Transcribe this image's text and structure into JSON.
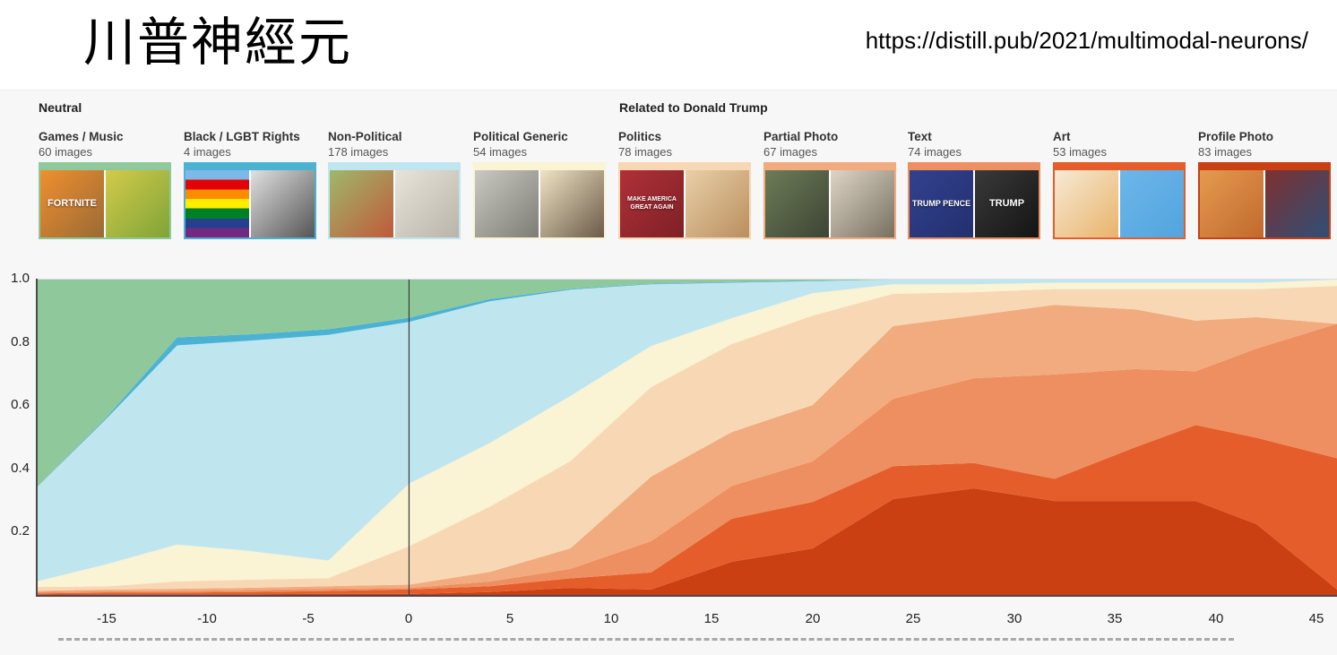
{
  "slide": {
    "title": "川普神經元",
    "url": "https://distill.pub/2021/multimodal-neurons/"
  },
  "legend": {
    "groups": [
      {
        "label": "Neutral"
      },
      {
        "label": "Related to Donald Trump"
      }
    ],
    "categories": [
      {
        "group": 0,
        "label": "Games / Music",
        "count": "60 images",
        "color": "#8fc99b",
        "thumbs": [
          {
            "name": "fortnite-cover-thumb",
            "text": "FORTNITE",
            "colors": [
              "#f08f2e",
              "#9a6a35"
            ]
          },
          {
            "name": "game-scene-thumb",
            "colors": [
              "#d3cb4a",
              "#7fa437"
            ]
          }
        ]
      },
      {
        "group": 0,
        "label": "Black / LGBT Rights",
        "count": "4 images",
        "color": "#4cb2d4",
        "thumbs": [
          {
            "name": "pride-flag-thumb",
            "kind": "rainbow",
            "colors": [
              "#79b8e8",
              "#4a90d9"
            ]
          },
          {
            "name": "mlk-photo-thumb",
            "colors": [
              "#e0e0e0",
              "#555555"
            ]
          }
        ]
      },
      {
        "group": 0,
        "label": "Non-Political",
        "count": "178 images",
        "color": "#bfe6ee",
        "thumbs": [
          {
            "name": "apple-tree-thumb",
            "colors": [
              "#9fb86a",
              "#c05a3a"
            ]
          },
          {
            "name": "llama-thumb",
            "colors": [
              "#e9e4da",
              "#b9b4a8"
            ]
          }
        ]
      },
      {
        "group": 0,
        "label": "Political Generic",
        "count": "54 images",
        "color": "#faf3d4",
        "thumbs": [
          {
            "name": "bw-crowd-thumb",
            "colors": [
              "#c9c9c2",
              "#7d7d76"
            ]
          },
          {
            "name": "flag-silhouette-thumb",
            "colors": [
              "#efe3c4",
              "#6b5a48"
            ]
          }
        ]
      },
      {
        "group": 1,
        "label": "Politics",
        "count": "78 images",
        "color": "#f8d8b4",
        "thumbs": [
          {
            "name": "maga-hat-thumb",
            "text": "MAKE AMERICA GREAT AGAIN",
            "colors": [
              "#b03038",
              "#7e2026"
            ]
          },
          {
            "name": "portrait-thumb",
            "colors": [
              "#e9cfa8",
              "#b98f5e"
            ]
          }
        ]
      },
      {
        "group": 1,
        "label": "Partial Photo",
        "count": "67 images",
        "color": "#f2ab7e",
        "thumbs": [
          {
            "name": "walking-group-thumb",
            "colors": [
              "#6d7c57",
              "#3c4434"
            ]
          },
          {
            "name": "handshake-flags-thumb",
            "colors": [
              "#ded5c6",
              "#77705f"
            ]
          }
        ]
      },
      {
        "group": 1,
        "label": "Text",
        "count": "74 images",
        "color": "#ee8f62",
        "thumbs": [
          {
            "name": "trump-pence-sign-thumb",
            "text": "TRUMP PENCE",
            "colors": [
              "#32418f",
              "#22306e"
            ]
          },
          {
            "name": "trump-shirt-thumb",
            "text": "TRUMP",
            "colors": [
              "#3a3a3a",
              "#141414"
            ]
          }
        ]
      },
      {
        "group": 1,
        "label": "Art",
        "count": "53 images",
        "color": "#e55d2b",
        "thumbs": [
          {
            "name": "trump-caricature-thumb",
            "colors": [
              "#f6ead6",
              "#e9b36a"
            ]
          },
          {
            "name": "twitter-bird-art-thumb",
            "colors": [
              "#6cb6ea",
              "#53a4de"
            ]
          }
        ]
      },
      {
        "group": 1,
        "label": "Profile Photo",
        "count": "83 images",
        "color": "#ca4012",
        "thumbs": [
          {
            "name": "trump-face-thumb",
            "colors": [
              "#e59a50",
              "#c06a2c"
            ]
          },
          {
            "name": "trump-podium-thumb",
            "colors": [
              "#7e3030",
              "#2e4f78"
            ]
          }
        ]
      }
    ]
  },
  "chart_data": {
    "type": "area",
    "stacked": true,
    "normalized": true,
    "title": "",
    "xlabel": "",
    "ylabel": "",
    "xlim": [
      -18.5,
      46
    ],
    "ylim": [
      0,
      1
    ],
    "marker_x": 0,
    "x_ticks": [
      -15,
      -10,
      -5,
      0,
      5,
      10,
      15,
      20,
      25,
      30,
      35,
      40,
      45
    ],
    "y_tick_labels": [
      "1.0",
      "0.8",
      "0.6",
      "0.4",
      "0.2"
    ],
    "y_tick_values": [
      1.0,
      0.8,
      0.6,
      0.4,
      0.2
    ],
    "x": [
      -18.5,
      -15,
      -11.5,
      -8,
      -4,
      0,
      4,
      8,
      12,
      16,
      20,
      24,
      28,
      32,
      36,
      39,
      42,
      46
    ],
    "series": [
      {
        "name": "profile-photo",
        "label": "Profile Photo",
        "color": "#ca4012",
        "values": [
          0.004,
          0.005,
          0.005,
          0.005,
          0.006,
          0.006,
          0.012,
          0.025,
          0.02,
          0.108,
          0.15,
          0.306,
          0.34,
          0.3,
          0.3,
          0.3,
          0.227,
          0.02
        ]
      },
      {
        "name": "art",
        "label": "Art",
        "color": "#e55d2b",
        "values": [
          0.004,
          0.005,
          0.005,
          0.007,
          0.009,
          0.014,
          0.018,
          0.03,
          0.054,
          0.136,
          0.147,
          0.104,
          0.08,
          0.07,
          0.17,
          0.24,
          0.273,
          0.415
        ]
      },
      {
        "name": "text",
        "label": "Text",
        "color": "#ee8f62",
        "values": [
          0.004,
          0.005,
          0.005,
          0.006,
          0.007,
          0.005,
          0.015,
          0.03,
          0.099,
          0.104,
          0.128,
          0.213,
          0.268,
          0.33,
          0.247,
          0.17,
          0.282,
          0.425
        ]
      },
      {
        "name": "partial-photo",
        "label": "Partial Photo",
        "color": "#f2ab7e",
        "values": [
          0.004,
          0.005,
          0.007,
          0.007,
          0.008,
          0.01,
          0.03,
          0.065,
          0.204,
          0.17,
          0.178,
          0.23,
          0.198,
          0.22,
          0.189,
          0.16,
          0.099,
          0.0
        ]
      },
      {
        "name": "politics",
        "label": "Politics",
        "color": "#f8d8b4",
        "values": [
          0.012,
          0.01,
          0.023,
          0.025,
          0.025,
          0.12,
          0.205,
          0.275,
          0.283,
          0.278,
          0.283,
          0.102,
          0.074,
          0.05,
          0.064,
          0.1,
          0.089,
          0.12
        ]
      },
      {
        "name": "political-generic",
        "label": "Political Generic",
        "color": "#faf3d4",
        "values": [
          0.017,
          0.07,
          0.115,
          0.09,
          0.055,
          0.195,
          0.2,
          0.205,
          0.13,
          0.082,
          0.071,
          0.03,
          0.025,
          0.02,
          0.02,
          0.02,
          0.02,
          0.02
        ]
      },
      {
        "name": "non-political",
        "label": "Non-Political",
        "color": "#bfe6ee",
        "values": [
          0.295,
          0.46,
          0.62,
          0.65,
          0.7,
          0.505,
          0.445,
          0.335,
          0.195,
          0.112,
          0.038,
          0.015,
          0.015,
          0.01,
          0.01,
          0.01,
          0.01,
          0.0
        ]
      },
      {
        "name": "black-lgbt-rights",
        "label": "Black / LGBT Rights",
        "color": "#4cb2d4",
        "values": [
          0.0,
          0.005,
          0.025,
          0.02,
          0.018,
          0.013,
          0.007,
          0.003,
          0.002,
          0.002,
          0.002,
          0.0,
          0.0,
          0.0,
          0.0,
          0.0,
          0.0,
          0.0
        ]
      },
      {
        "name": "games-music",
        "label": "Games / Music",
        "color": "#8fc99b",
        "values": [
          0.66,
          0.435,
          0.18,
          0.17,
          0.154,
          0.119,
          0.061,
          0.029,
          0.013,
          0.008,
          0.003,
          0.0,
          0.0,
          0.0,
          0.0,
          0.0,
          0.0,
          0.0
        ]
      }
    ]
  }
}
